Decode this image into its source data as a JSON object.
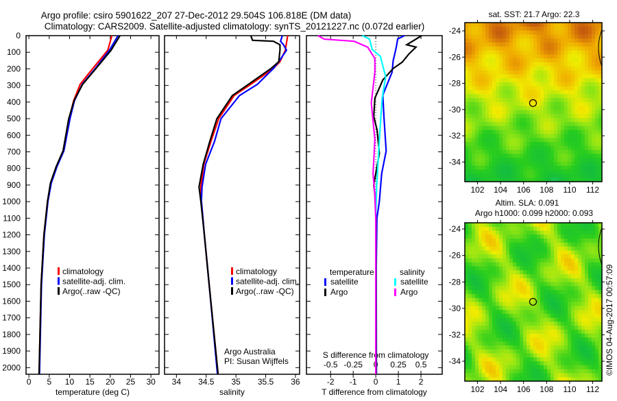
{
  "title": {
    "line1": "Argo profile: csiro 5901622_207 27-Dec-2012 29.504S 106.818E (DM data)",
    "line2": "Climatology: CARS2009. Satellite-adjusted climatology: synTS_20121227.nc (0.072d earlier)"
  },
  "colors": {
    "climatology": "#ff0000",
    "satellite": "#0000ff",
    "argo": "#000000",
    "salinity_satellite": "#00ffff",
    "salinity_argo": "#ff00ff"
  },
  "chart_data": [
    {
      "type": "line",
      "name": "temperature",
      "xlabel": "temperature (deg C)",
      "ylabel": "",
      "xlim": [
        -0.7,
        32
      ],
      "ylim": [
        2040,
        0
      ],
      "xticks": [
        0,
        5,
        10,
        15,
        20,
        25,
        30
      ],
      "yticks": [
        0,
        100,
        200,
        300,
        400,
        500,
        600,
        700,
        800,
        900,
        1000,
        1100,
        1200,
        1300,
        1400,
        1500,
        1600,
        1700,
        1800,
        1900,
        2000
      ],
      "legend": [
        "climatology",
        "satellite-adj. clim.",
        "Argo(..raw -QC)"
      ],
      "series": [
        {
          "name": "climatology",
          "color": "#ff0000",
          "points": [
            [
              20.4,
              0
            ],
            [
              19.4,
              88
            ],
            [
              15.7,
              198
            ],
            [
              12.6,
              293
            ],
            [
              11.0,
              392
            ],
            [
              9.9,
              500
            ],
            [
              8.5,
              694
            ],
            [
              6.8,
              789
            ],
            [
              5.4,
              888
            ],
            [
              4.6,
              996
            ],
            [
              3.7,
              1200
            ],
            [
              3.0,
              1500
            ],
            [
              2.5,
              2040
            ]
          ]
        },
        {
          "name": "satellite-adj. clim.",
          "color": "#0000ff",
          "points": [
            [
              21.9,
              0
            ],
            [
              19.8,
              88
            ],
            [
              16.3,
              198
            ],
            [
              13.1,
              293
            ],
            [
              11.2,
              392
            ],
            [
              10.1,
              500
            ],
            [
              8.6,
              694
            ],
            [
              6.9,
              789
            ],
            [
              5.5,
              888
            ],
            [
              4.7,
              996
            ],
            [
              3.8,
              1200
            ],
            [
              3.1,
              1500
            ],
            [
              2.6,
              2040
            ]
          ]
        },
        {
          "name": "Argo(..raw -QC)",
          "color": "#000000",
          "points": [
            [
              22.4,
              0
            ],
            [
              20.2,
              88
            ],
            [
              16.5,
              198
            ],
            [
              13.2,
              293
            ],
            [
              11.1,
              392
            ],
            [
              9.8,
              500
            ],
            [
              8.4,
              694
            ],
            [
              6.7,
              789
            ],
            [
              5.3,
              888
            ],
            [
              4.6,
              996
            ],
            [
              3.7,
              1200
            ],
            [
              3.0,
              1500
            ],
            [
              2.5,
              2040
            ]
          ]
        }
      ]
    },
    {
      "type": "line",
      "name": "salinity",
      "xlabel": "salinity",
      "xlim": [
        33.8,
        36.07
      ],
      "ylim": [
        2040,
        0
      ],
      "xticks": [
        34,
        34.5,
        35,
        35.5,
        36
      ],
      "legend": [
        "climatology",
        "satellite-adj. clim.",
        "Argo(..raw -QC)"
      ],
      "annotation": [
        "Argo Australia",
        "PI: Susan Wijffels"
      ],
      "series": [
        {
          "name": "climatology",
          "color": "#ff0000",
          "points": [
            [
              35.87,
              0
            ],
            [
              35.83,
              88
            ],
            [
              35.74,
              157
            ],
            [
              35.63,
              198
            ],
            [
              35.25,
              293
            ],
            [
              34.97,
              361
            ],
            [
              34.71,
              500
            ],
            [
              34.58,
              637
            ],
            [
              34.46,
              775
            ],
            [
              34.41,
              912
            ],
            [
              34.42,
              996
            ],
            [
              34.47,
              1200
            ],
            [
              34.55,
              1500
            ],
            [
              34.7,
              2040
            ]
          ]
        },
        {
          "name": "satellite-adj. clim.",
          "color": "#0000ff",
          "points": [
            [
              35.78,
              0
            ],
            [
              35.75,
              34
            ],
            [
              35.8,
              55
            ],
            [
              35.85,
              88
            ],
            [
              35.72,
              157
            ],
            [
              35.63,
              198
            ],
            [
              35.36,
              293
            ],
            [
              35.06,
              361
            ],
            [
              34.75,
              500
            ],
            [
              34.64,
              637
            ],
            [
              34.49,
              775
            ],
            [
              34.43,
              912
            ],
            [
              34.42,
              996
            ],
            [
              34.47,
              1200
            ],
            [
              34.55,
              1500
            ],
            [
              34.69,
              2040
            ]
          ]
        },
        {
          "name": "Argo(..raw -QC)",
          "color": "#000000",
          "points": [
            [
              35.25,
              0
            ],
            [
              35.28,
              28
            ],
            [
              35.63,
              34
            ],
            [
              35.74,
              55
            ],
            [
              35.74,
              88
            ],
            [
              35.72,
              157
            ],
            [
              35.59,
              198
            ],
            [
              35.21,
              293
            ],
            [
              34.94,
              361
            ],
            [
              34.68,
              500
            ],
            [
              34.56,
              637
            ],
            [
              34.45,
              775
            ],
            [
              34.38,
              912
            ],
            [
              34.41,
              996
            ],
            [
              34.47,
              1200
            ],
            [
              34.55,
              1500
            ],
            [
              34.7,
              2040
            ]
          ]
        }
      ]
    },
    {
      "type": "line",
      "name": "difference",
      "xlabel": "T difference from climatology",
      "x2label": "S difference from climatology",
      "xlim": [
        -3.07,
        2.94
      ],
      "ylim": [
        2040,
        0
      ],
      "xticks": [
        -2,
        -1,
        0,
        1,
        2
      ],
      "x2ticks": [
        -0.5,
        -0.25,
        0,
        0.25,
        0.5
      ],
      "x2ticklabels": [
        "-0.5",
        "-0.25",
        "0",
        "0.25",
        "0.5"
      ],
      "legend_headers": [
        "temperature",
        "salinity"
      ],
      "legend": [
        "satellite",
        "Argo",
        "satellite",
        "Argo"
      ],
      "series": [
        {
          "name": "T satellite",
          "units": "T",
          "color": "#0000ff",
          "points": [
            [
              1.27,
              0
            ],
            [
              0.97,
              20
            ],
            [
              0.91,
              69
            ],
            [
              0.77,
              151
            ],
            [
              0.72,
              220
            ],
            [
              0.31,
              358
            ],
            [
              0.36,
              487
            ],
            [
              0.46,
              694
            ],
            [
              0.26,
              832
            ],
            [
              0.16,
              996
            ],
            [
              0.05,
              1100
            ],
            [
              0.02,
              1400
            ],
            [
              0.03,
              2040
            ]
          ]
        },
        {
          "name": "T Argo",
          "units": "T",
          "color": "#000000",
          "points": [
            [
              2.03,
              0
            ],
            [
              1.37,
              55
            ],
            [
              1.78,
              69
            ],
            [
              1.47,
              110
            ],
            [
              1.17,
              160
            ],
            [
              0.77,
              198
            ],
            [
              0.31,
              267
            ],
            [
              -0.04,
              377
            ],
            [
              -0.09,
              487
            ],
            [
              0.06,
              570
            ],
            [
              0.16,
              708
            ],
            [
              -0.09,
              900
            ],
            [
              -0.04,
              955
            ],
            [
              0.01,
              1100
            ],
            [
              0.02,
              2040
            ]
          ]
        },
        {
          "name": "S satellite",
          "units": "S",
          "color": "#00ffff",
          "points": [
            [
              -0.15,
              0
            ],
            [
              -0.07,
              20
            ],
            [
              -0.04,
              83
            ],
            [
              0.05,
              124
            ],
            [
              0.11,
              248
            ],
            [
              0.07,
              377
            ],
            [
              0.04,
              625
            ],
            [
              0.01,
              900
            ],
            [
              0.0,
              1100
            ],
            [
              0.0,
              2040
            ]
          ]
        },
        {
          "name": "S Argo",
          "units": "S",
          "color": "#ff00ff",
          "points": [
            [
              -0.64,
              0
            ],
            [
              -0.57,
              21
            ],
            [
              -0.24,
              34
            ],
            [
              -0.09,
              69
            ],
            [
              -0.01,
              138
            ],
            [
              -0.01,
              220
            ],
            [
              -0.05,
              405
            ],
            [
              -0.01,
              625
            ],
            [
              -0.03,
              832
            ],
            [
              -0.01,
              955
            ],
            [
              0.0,
              1100
            ],
            [
              0.0,
              2040
            ]
          ]
        }
      ]
    },
    {
      "type": "heatmap",
      "name": "sst-map",
      "title": "sat. SST: 21.7 Argo: 22.3",
      "xlim": [
        100.9,
        112.8
      ],
      "ylim": [
        -35.5,
        -23.37
      ],
      "xticks": [
        102,
        104,
        106,
        108,
        110,
        112
      ],
      "yticks": [
        -24,
        -26,
        -28,
        -30,
        -32,
        -34
      ],
      "marker": {
        "lon": 106.818,
        "lat": -29.504
      }
    },
    {
      "type": "heatmap",
      "name": "sla-map",
      "title": [
        "Altim. SLA: 0.091",
        "Argo h1000: 0.099 h2000: 0.093"
      ],
      "xlim": [
        100.9,
        112.8
      ],
      "ylim": [
        -35.5,
        -23.53
      ],
      "xticks": [
        102,
        104,
        106,
        108,
        110,
        112
      ],
      "yticks": [
        -24,
        -26,
        -28,
        -30,
        -32,
        -34
      ],
      "marker": {
        "lon": 106.818,
        "lat": -29.504
      }
    }
  ],
  "footer": {
    "credit": "©IMOS 04-Aug-2017 00:57:09"
  }
}
